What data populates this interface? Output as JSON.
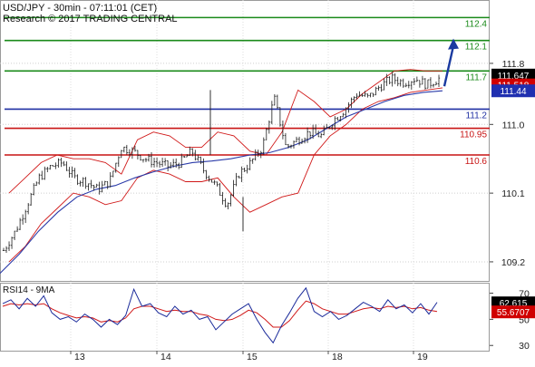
{
  "title_line1": "USD/JPY - 30min - 07:11:01 (CET)",
  "title_line2": "Research © 2017 TRADING CENTRAL",
  "rsi_label": "RSI14 - 9MA",
  "colors": {
    "support_resistance_green": "#1a8a1a",
    "pivot_blue": "#1f2fa3",
    "support_red": "#c81414",
    "bollinger": "#d01818",
    "moving_average": "#2a3aa8",
    "candles": "#1c1c1c",
    "rsi_line": "#1a2a9a",
    "rsi_ma": "#d01818",
    "arrow": "#1a3aa0",
    "last_price_box": "#000000",
    "red_price_box": "#d00000",
    "blue_price_box": "#1f2fb0"
  },
  "chart_data": [
    {
      "type": "candlestick",
      "symbol": "USD/JPY",
      "timeframe": "30min",
      "x_tick_labels": [
        "13",
        "14",
        "15",
        "18",
        "19"
      ],
      "y_tick_labels": [
        "111.8",
        "111.0",
        "110.1",
        "109.2"
      ],
      "ylim": [
        108.95,
        112.63
      ],
      "horizontal_levels": [
        {
          "value": 112.4,
          "label": "112.4",
          "color": "green"
        },
        {
          "value": 112.1,
          "label": "112.1",
          "color": "green"
        },
        {
          "value": 111.7,
          "label": "111.7",
          "color": "green"
        },
        {
          "value": 111.2,
          "label": "111.2",
          "color": "blue"
        },
        {
          "value": 110.95,
          "label": "110.95",
          "color": "red"
        },
        {
          "value": 110.6,
          "label": "110.6",
          "color": "red"
        }
      ],
      "price_boxes": [
        {
          "label": "111.647",
          "value": 111.647,
          "style": "last"
        },
        {
          "label": "111.518",
          "value": 111.518,
          "style": "red"
        },
        {
          "label": "111.44",
          "value": 111.44,
          "style": "blue"
        }
      ],
      "close_path": [
        109.35,
        109.6,
        109.95,
        110.3,
        110.45,
        110.5,
        110.3,
        110.25,
        110.15,
        110.25,
        110.7,
        110.65,
        110.55,
        110.5,
        110.45,
        110.5,
        110.65,
        110.4,
        110.2,
        109.95,
        110.35,
        110.5,
        110.7,
        111.35,
        110.7,
        110.8,
        110.9,
        110.85,
        111.05,
        111.2,
        111.4,
        111.35,
        111.5,
        111.6,
        111.55,
        111.6,
        111.52,
        111.6
      ],
      "bollinger_upper": [
        110.1,
        110.3,
        110.5,
        110.6,
        110.55,
        110.55,
        110.5,
        110.35,
        110.8,
        110.9,
        110.85,
        110.7,
        110.7,
        110.9,
        110.85,
        110.65,
        110.6,
        110.9,
        111.45,
        111.3,
        111.1,
        111.2,
        111.4,
        111.55,
        111.7,
        111.72,
        111.7,
        111.7
      ],
      "bollinger_lower": [
        109.2,
        109.4,
        109.7,
        109.9,
        110.1,
        110.05,
        109.95,
        110.0,
        110.3,
        110.4,
        110.35,
        110.25,
        110.25,
        110.3,
        110.05,
        109.85,
        109.95,
        110.05,
        110.1,
        110.6,
        110.85,
        111.0,
        111.2,
        111.3,
        111.35,
        111.42,
        111.45,
        111.48
      ],
      "moving_average": [
        109.05,
        109.3,
        109.6,
        109.85,
        110.05,
        110.15,
        110.2,
        110.3,
        110.38,
        110.45,
        110.5,
        110.52,
        110.55,
        110.6,
        110.63,
        110.7,
        110.8,
        110.95,
        111.1,
        111.2,
        111.3,
        111.38,
        111.42,
        111.44
      ],
      "projection_arrow": {
        "from": 111.5,
        "to": 112.1
      }
    },
    {
      "type": "line",
      "title": "RSI14 - 9MA",
      "y_tick_labels": [
        "70",
        "50",
        "30"
      ],
      "ylim": [
        26,
        78
      ],
      "value_boxes": [
        {
          "label": "62.615",
          "value": 62.615,
          "style": "last"
        },
        {
          "label": "55.6707",
          "value": 55.6707,
          "style": "red"
        }
      ],
      "series": [
        {
          "name": "RSI14",
          "values": [
            62,
            65,
            58,
            66,
            60,
            68,
            55,
            50,
            52,
            48,
            54,
            50,
            44,
            50,
            46,
            53,
            73,
            60,
            62,
            55,
            52,
            60,
            54,
            57,
            50,
            52,
            42,
            48,
            54,
            58,
            62,
            50,
            40,
            32,
            45,
            55,
            66,
            74,
            56,
            52,
            56,
            50,
            53,
            58,
            63,
            60,
            56,
            65,
            58,
            61,
            55,
            62,
            54,
            63
          ]
        },
        {
          "name": "9MA",
          "values": [
            60,
            62,
            61,
            62,
            61,
            62,
            58,
            55,
            53,
            51,
            52,
            51,
            48,
            49,
            48,
            51,
            58,
            60,
            60,
            58,
            56,
            57,
            56,
            56,
            54,
            53,
            50,
            49,
            50,
            53,
            57,
            55,
            50,
            44,
            44,
            49,
            57,
            64,
            62,
            58,
            56,
            54,
            54,
            56,
            58,
            59,
            58,
            60,
            59,
            60,
            58,
            59,
            57,
            56
          ]
        }
      ]
    }
  ]
}
